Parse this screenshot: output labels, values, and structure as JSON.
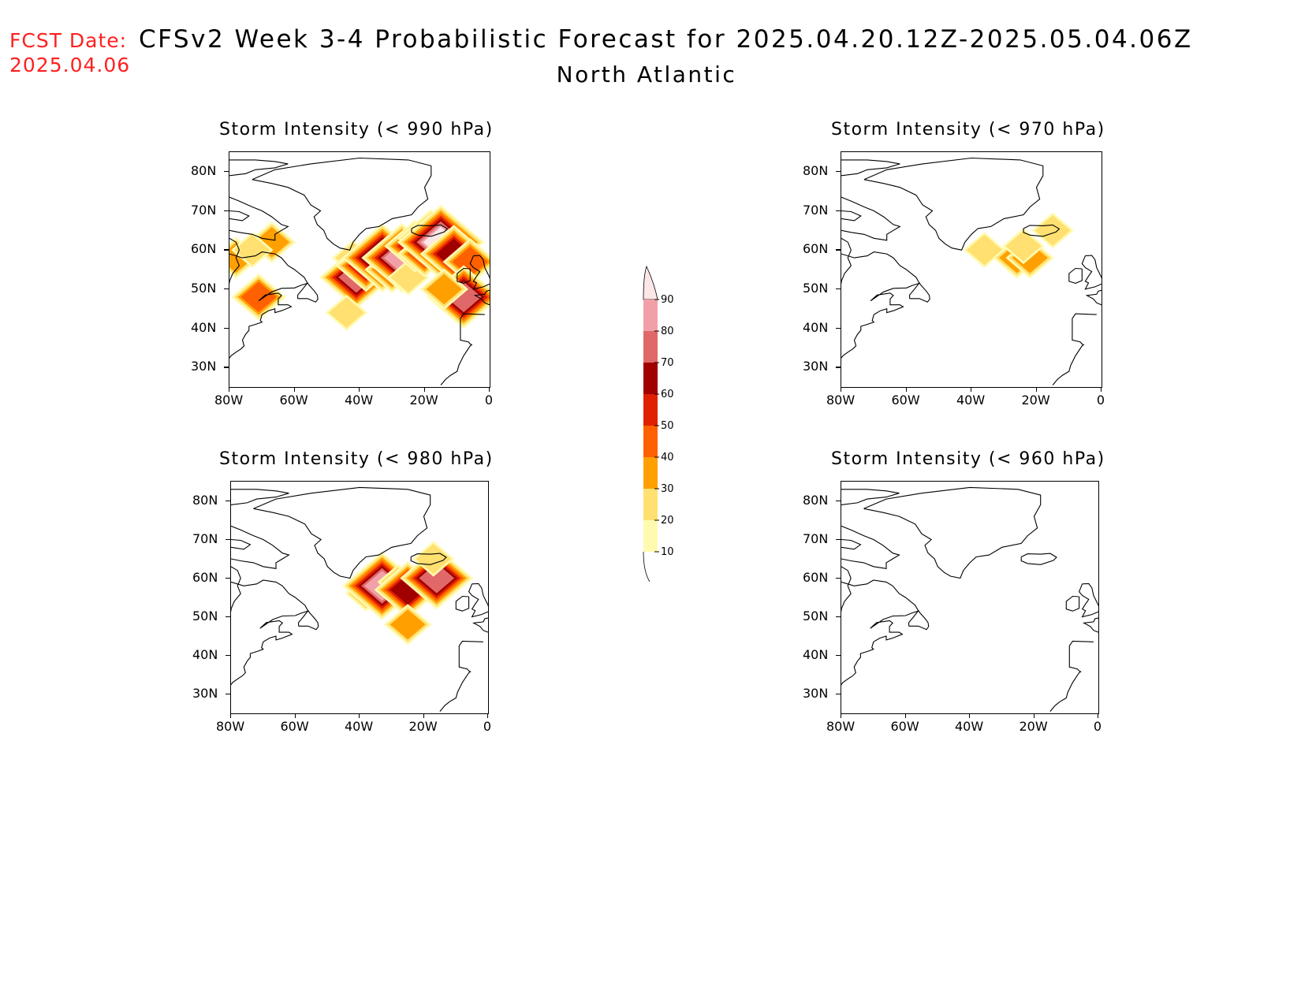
{
  "header": {
    "fcst_label": "FCST Date:",
    "fcst_date": "2025.04.06",
    "title": "CFSv2 Week 3-4 Probabilistic Forecast for 2025.04.20.12Z-2025.05.04.06Z",
    "subtitle": "North Atlantic"
  },
  "axes": {
    "lat_labels": [
      "80N",
      "70N",
      "60N",
      "50N",
      "40N",
      "30N"
    ],
    "lon_labels": [
      "80W",
      "60W",
      "40W",
      "20W",
      "0"
    ],
    "lat_range": [
      25,
      85
    ],
    "lon_range": [
      -80,
      0
    ]
  },
  "panels": [
    {
      "id": "p990",
      "title": "Storm Intensity (< 990 hPa)"
    },
    {
      "id": "p970",
      "title": "Storm Intensity (< 970 hPa)"
    },
    {
      "id": "p980",
      "title": "Storm Intensity (< 980 hPa)"
    },
    {
      "id": "p960",
      "title": "Storm Intensity (< 960 hPa)"
    }
  ],
  "colorbar": {
    "labels": [
      "90",
      "80",
      "70",
      "60",
      "50",
      "40",
      "30",
      "20",
      "10"
    ],
    "colors": [
      "#fde6e8",
      "#f2a0a8",
      "#e06868",
      "#a00000",
      "#e02000",
      "#ff6000",
      "#ffa000",
      "#ffe070",
      "#fffab0"
    ]
  },
  "chart_data": [
    {
      "type": "heatmap",
      "title": "Storm Intensity (< 990 hPa)",
      "units": "probability (%)",
      "features": [
        {
          "lon": -67,
          "lat": 62,
          "value": 30
        },
        {
          "lon": -78,
          "lat": 58,
          "value": 30
        },
        {
          "lon": -73,
          "lat": 60,
          "value": 20
        },
        {
          "lon": -71,
          "lat": 48,
          "value": 40
        },
        {
          "lon": -42,
          "lat": 58,
          "value": 20
        },
        {
          "lon": -41,
          "lat": 53,
          "value": 70
        },
        {
          "lon": -38,
          "lat": 56,
          "value": 50
        },
        {
          "lon": -33,
          "lat": 58,
          "value": 80
        },
        {
          "lon": -30,
          "lat": 55,
          "value": 40
        },
        {
          "lon": -27,
          "lat": 58,
          "value": 80
        },
        {
          "lon": -25,
          "lat": 53,
          "value": 20
        },
        {
          "lon": -23,
          "lat": 61,
          "value": 50
        },
        {
          "lon": -20,
          "lat": 59,
          "value": 40
        },
        {
          "lon": -18,
          "lat": 63,
          "value": 60
        },
        {
          "lon": -15,
          "lat": 62,
          "value": 90
        },
        {
          "lon": -11,
          "lat": 59,
          "value": 60
        },
        {
          "lon": -6,
          "lat": 57,
          "value": 40
        },
        {
          "lon": -8,
          "lat": 48,
          "value": 70
        },
        {
          "lon": -14,
          "lat": 50,
          "value": 30
        },
        {
          "lon": -44,
          "lat": 44,
          "value": 20
        }
      ]
    },
    {
      "type": "heatmap",
      "title": "Storm Intensity (< 970 hPa)",
      "units": "probability (%)",
      "features": [
        {
          "lon": -36,
          "lat": 60,
          "value": 20
        },
        {
          "lon": -26,
          "lat": 58,
          "value": 30
        },
        {
          "lon": -22,
          "lat": 58,
          "value": 30
        },
        {
          "lon": -24,
          "lat": 61,
          "value": 20
        },
        {
          "lon": -15,
          "lat": 65,
          "value": 20
        }
      ]
    },
    {
      "type": "heatmap",
      "title": "Storm Intensity (< 980 hPa)",
      "units": "probability (%)",
      "features": [
        {
          "lon": -38,
          "lat": 56,
          "value": 20
        },
        {
          "lon": -33,
          "lat": 58,
          "value": 80
        },
        {
          "lon": -28,
          "lat": 59,
          "value": 20
        },
        {
          "lon": -25,
          "lat": 57,
          "value": 60
        },
        {
          "lon": -19,
          "lat": 60,
          "value": 30
        },
        {
          "lon": -16,
          "lat": 60,
          "value": 70
        },
        {
          "lon": -17,
          "lat": 65,
          "value": 20
        },
        {
          "lon": -25,
          "lat": 48,
          "value": 30
        }
      ]
    },
    {
      "type": "heatmap",
      "title": "Storm Intensity (< 960 hPa)",
      "units": "probability (%)",
      "features": []
    }
  ]
}
